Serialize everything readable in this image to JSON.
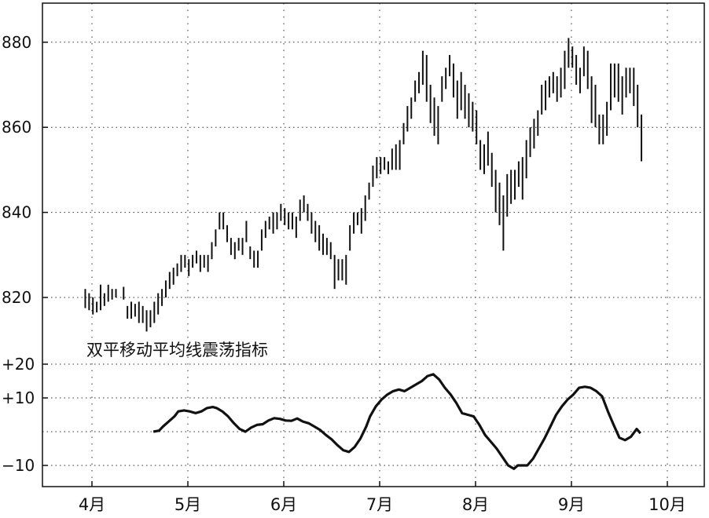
{
  "chart_data": [
    {
      "type": "bar",
      "subtype": "high-low price bars",
      "title": "",
      "xlabel": "",
      "ylabel": "",
      "ylim": [
        812,
        887
      ],
      "yticks": [
        "820",
        "840",
        "860",
        "880"
      ],
      "grid": true,
      "x_categories": [
        "4月",
        "5月",
        "6月",
        "7月",
        "8月",
        "9月",
        "10月"
      ],
      "x_range_months": [
        3.6,
        10.3
      ],
      "bars": [
        [
          3.93,
          817.5,
          822
        ],
        [
          3.97,
          817,
          821
        ],
        [
          4.01,
          816,
          820
        ],
        [
          4.05,
          816.5,
          819
        ],
        [
          4.09,
          817,
          823
        ],
        [
          4.13,
          818,
          821
        ],
        [
          4.17,
          819,
          823
        ],
        [
          4.21,
          819.5,
          822
        ],
        [
          4.25,
          820,
          822
        ],
        [
          4.33,
          819.5,
          822.5
        ],
        [
          4.37,
          815,
          818
        ],
        [
          4.41,
          815,
          819
        ],
        [
          4.45,
          815.5,
          818.5
        ],
        [
          4.49,
          814,
          819
        ],
        [
          4.53,
          814,
          818
        ],
        [
          4.57,
          812,
          817
        ],
        [
          4.61,
          813,
          817
        ],
        [
          4.65,
          814,
          819
        ],
        [
          4.69,
          816,
          821
        ],
        [
          4.73,
          818,
          822
        ],
        [
          4.77,
          820,
          824
        ],
        [
          4.81,
          822,
          826
        ],
        [
          4.85,
          823,
          827
        ],
        [
          4.89,
          825,
          828
        ],
        [
          4.93,
          826,
          830
        ],
        [
          4.97,
          827,
          830
        ],
        [
          5.01,
          825,
          829
        ],
        [
          5.05,
          827,
          830
        ],
        [
          5.09,
          828,
          831
        ],
        [
          5.13,
          826,
          830
        ],
        [
          5.17,
          827,
          830
        ],
        [
          5.21,
          826,
          830
        ],
        [
          5.25,
          829,
          833
        ],
        [
          5.29,
          832,
          836
        ],
        [
          5.33,
          836,
          840
        ],
        [
          5.37,
          836,
          840
        ],
        [
          5.41,
          833,
          837
        ],
        [
          5.45,
          830,
          834
        ],
        [
          5.49,
          829,
          833
        ],
        [
          5.53,
          831,
          834
        ],
        [
          5.57,
          830,
          834
        ],
        [
          5.61,
          833,
          838
        ],
        [
          5.65,
          829,
          832
        ],
        [
          5.69,
          827,
          831
        ],
        [
          5.73,
          827,
          831
        ],
        [
          5.77,
          831,
          836
        ],
        [
          5.81,
          834,
          838
        ],
        [
          5.85,
          836,
          839
        ],
        [
          5.89,
          835,
          840
        ],
        [
          5.93,
          836,
          840
        ],
        [
          5.97,
          838,
          842
        ],
        [
          6.01,
          837,
          841
        ],
        [
          6.05,
          836,
          840
        ],
        [
          6.09,
          836,
          840
        ],
        [
          6.13,
          834,
          839
        ],
        [
          6.17,
          838,
          843
        ],
        [
          6.21,
          840,
          844
        ],
        [
          6.25,
          838,
          842
        ],
        [
          6.29,
          835,
          840
        ],
        [
          6.33,
          833,
          838
        ],
        [
          6.37,
          831,
          837
        ],
        [
          6.41,
          830,
          835
        ],
        [
          6.45,
          830,
          834
        ],
        [
          6.49,
          829,
          833
        ],
        [
          6.53,
          822,
          830
        ],
        [
          6.57,
          824,
          829
        ],
        [
          6.61,
          824,
          829
        ],
        [
          6.65,
          823,
          830
        ],
        [
          6.69,
          831,
          837
        ],
        [
          6.73,
          835,
          840
        ],
        [
          6.77,
          837,
          840
        ],
        [
          6.81,
          835,
          841
        ],
        [
          6.85,
          838,
          844
        ],
        [
          6.89,
          843,
          847
        ],
        [
          6.93,
          846,
          851
        ],
        [
          6.97,
          848,
          853
        ],
        [
          7.01,
          849,
          853
        ],
        [
          7.05,
          850,
          853
        ],
        [
          7.09,
          849,
          852
        ],
        [
          7.13,
          850,
          855
        ],
        [
          7.17,
          850,
          856
        ],
        [
          7.21,
          850,
          857
        ],
        [
          7.25,
          856,
          861
        ],
        [
          7.29,
          859,
          865
        ],
        [
          7.33,
          862,
          867
        ],
        [
          7.37,
          866,
          871
        ],
        [
          7.41,
          868,
          873
        ],
        [
          7.45,
          870,
          878
        ],
        [
          7.49,
          866,
          877
        ],
        [
          7.53,
          861,
          870
        ],
        [
          7.57,
          858,
          867
        ],
        [
          7.61,
          856,
          865
        ],
        [
          7.65,
          866,
          872
        ],
        [
          7.69,
          869,
          874
        ],
        [
          7.73,
          872,
          877
        ],
        [
          7.77,
          867,
          875
        ],
        [
          7.81,
          862,
          871
        ],
        [
          7.85,
          864,
          873
        ],
        [
          7.89,
          862,
          870
        ],
        [
          7.93,
          860,
          868
        ],
        [
          7.97,
          859,
          866
        ],
        [
          8.01,
          856,
          864
        ],
        [
          8.05,
          850,
          857
        ],
        [
          8.09,
          849,
          856
        ],
        [
          8.13,
          851,
          859
        ],
        [
          8.17,
          846,
          854
        ],
        [
          8.21,
          840,
          850
        ],
        [
          8.25,
          837,
          847
        ],
        [
          8.29,
          831,
          844
        ],
        [
          8.33,
          839,
          849
        ],
        [
          8.37,
          842,
          850
        ],
        [
          8.41,
          843,
          850
        ],
        [
          8.45,
          846,
          852
        ],
        [
          8.49,
          843,
          853
        ],
        [
          8.53,
          848,
          857
        ],
        [
          8.57,
          853,
          860
        ],
        [
          8.61,
          855,
          862
        ],
        [
          8.65,
          858,
          864
        ],
        [
          8.69,
          863,
          870
        ],
        [
          8.73,
          864,
          871
        ],
        [
          8.77,
          867,
          872
        ],
        [
          8.81,
          868,
          873
        ],
        [
          8.85,
          866,
          872
        ],
        [
          8.89,
          867,
          874
        ],
        [
          8.93,
          869,
          878
        ],
        [
          8.97,
          874,
          881
        ],
        [
          9.01,
          874,
          879
        ],
        [
          9.05,
          870,
          877
        ],
        [
          9.09,
          868,
          874
        ],
        [
          9.13,
          872,
          879
        ],
        [
          9.17,
          869,
          878
        ],
        [
          9.21,
          861,
          872
        ],
        [
          9.25,
          860,
          870
        ],
        [
          9.29,
          856,
          863
        ],
        [
          9.33,
          856,
          863
        ],
        [
          9.37,
          858,
          866
        ],
        [
          9.41,
          864,
          875
        ],
        [
          9.45,
          867,
          875
        ],
        [
          9.49,
          866,
          875
        ],
        [
          9.53,
          863,
          872
        ],
        [
          9.57,
          867,
          874
        ],
        [
          9.61,
          868,
          874
        ],
        [
          9.65,
          865,
          874
        ],
        [
          9.69,
          860,
          870
        ],
        [
          9.73,
          852,
          863
        ]
      ]
    },
    {
      "type": "line",
      "title": "双平移动平均线震荡指标",
      "xlabel": "",
      "ylabel": "",
      "ylim": [
        -15,
        24
      ],
      "yticks": [
        "+20",
        "+10",
        "−10"
      ],
      "grid": true,
      "series": [
        {
          "x": [
            4.64,
            4.7,
            4.74,
            4.8,
            4.86,
            4.9,
            4.96,
            5.02,
            5.08,
            5.14,
            5.2,
            5.26,
            5.3,
            5.36,
            5.42,
            5.48,
            5.54,
            5.6,
            5.66,
            5.72,
            5.78,
            5.84,
            5.9,
            5.96,
            6.02,
            6.08,
            6.14,
            6.2,
            6.26,
            6.32,
            6.38,
            6.44,
            6.5,
            6.56,
            6.62,
            6.68,
            6.74,
            6.8,
            6.86,
            6.9,
            6.96,
            7.02,
            7.08,
            7.14,
            7.2,
            7.26,
            7.32,
            7.38,
            7.44,
            7.5,
            7.56,
            7.62,
            7.68,
            7.74,
            7.8,
            7.86,
            7.92,
            7.98,
            8.04,
            8.1,
            8.16,
            8.22,
            8.28,
            8.34,
            8.4,
            8.44,
            8.5,
            8.54,
            8.6,
            8.66,
            8.72,
            8.78,
            8.84,
            8.9,
            8.96,
            9.02,
            9.08,
            9.14,
            9.2,
            9.26,
            9.32,
            9.38,
            9.44,
            9.5,
            9.56,
            9.62,
            9.68,
            9.72
          ],
          "y": [
            0,
            0.3,
            1.5,
            3,
            4.5,
            6,
            6.3,
            6,
            5.5,
            6,
            7,
            7.3,
            7,
            6,
            4.5,
            2.5,
            0.8,
            0,
            1.2,
            2,
            2.2,
            3.3,
            4,
            3.8,
            3.3,
            3.2,
            3.9,
            3,
            2.5,
            1.5,
            0.5,
            -1,
            -2.3,
            -4,
            -5.5,
            -6,
            -4.5,
            -2,
            1.5,
            4.5,
            7.5,
            9.5,
            11,
            12,
            12.5,
            12,
            13,
            14,
            15,
            16.5,
            17,
            15.5,
            13,
            11,
            8.5,
            5.5,
            5,
            4.5,
            2,
            -1,
            -3,
            -5,
            -7.5,
            -10,
            -11,
            -10,
            -10,
            -10,
            -8,
            -5,
            -2,
            1.5,
            5,
            7.5,
            9.5,
            11,
            13,
            13.3,
            13,
            12,
            10.5,
            6,
            2,
            -1.8,
            -2.5,
            -1.5,
            0.8,
            -0.5
          ]
        }
      ]
    }
  ]
}
